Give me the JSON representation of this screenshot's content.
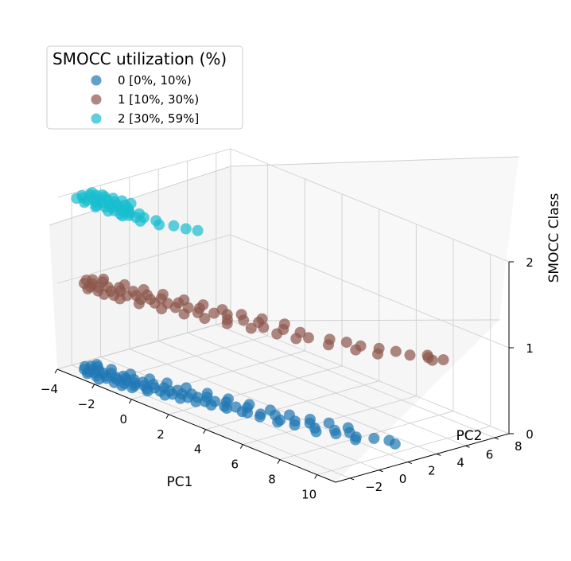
{
  "chart_data": {
    "type": "scatter",
    "projection": "3d",
    "xlabel": "PC1",
    "ylabel": "PC2",
    "zlabel": "SMOCC Class",
    "xlim": [
      -4,
      11
    ],
    "ylim": [
      -3,
      9
    ],
    "zlim": [
      0,
      2
    ],
    "x_ticks": [
      -4,
      -2,
      0,
      2,
      4,
      6,
      8,
      10
    ],
    "y_ticks": [
      -2,
      0,
      2,
      4,
      6,
      8
    ],
    "z_ticks": [
      0,
      1,
      2
    ],
    "x_tick_labels": [
      "−4",
      "−2",
      "0",
      "2",
      "4",
      "6",
      "8",
      "10"
    ],
    "y_tick_labels": [
      "−2",
      "0",
      "2",
      "4",
      "6",
      "8"
    ],
    "z_tick_labels": [
      "0",
      "1",
      "2"
    ],
    "grid": true,
    "legend": {
      "title": "SMOCC utilization (%)",
      "placement": "upper-left"
    },
    "series": [
      {
        "name": "0 [0%, 10%)",
        "class": 0,
        "color": "#1f77b4",
        "points": [
          [
            -3.6,
            -1.6
          ],
          [
            -3.4,
            -1.9
          ],
          [
            -3.5,
            -1.3
          ],
          [
            -3.2,
            -1.7
          ],
          [
            -3.1,
            -2.0
          ],
          [
            -3.0,
            -1.4
          ],
          [
            -3.3,
            -1.1
          ],
          [
            -2.9,
            -1.8
          ],
          [
            -2.7,
            -1.5
          ],
          [
            -2.6,
            -2.1
          ],
          [
            -2.5,
            -1.2
          ],
          [
            -2.4,
            -1.7
          ],
          [
            -2.2,
            -1.9
          ],
          [
            -2.1,
            -1.4
          ],
          [
            -2.0,
            -1.0
          ],
          [
            -1.9,
            -1.6
          ],
          [
            -1.7,
            -2.0
          ],
          [
            -1.6,
            -1.3
          ],
          [
            -1.5,
            -0.9
          ],
          [
            -1.4,
            -1.7
          ],
          [
            -1.2,
            -1.2
          ],
          [
            -1.1,
            -0.8
          ],
          [
            -1.0,
            -1.5
          ],
          [
            -0.8,
            -1.1
          ],
          [
            -0.7,
            -0.6
          ],
          [
            -0.5,
            -1.3
          ],
          [
            -0.4,
            -0.9
          ],
          [
            -0.2,
            -0.5
          ],
          [
            0.0,
            -1.0
          ],
          [
            0.2,
            -0.6
          ],
          [
            0.3,
            -0.2
          ],
          [
            0.5,
            -0.8
          ],
          [
            0.7,
            -0.4
          ],
          [
            0.9,
            0.0
          ],
          [
            1.1,
            -0.5
          ],
          [
            1.3,
            -0.1
          ],
          [
            1.5,
            0.3
          ],
          [
            1.8,
            -0.2
          ],
          [
            2.0,
            0.2
          ],
          [
            2.3,
            0.6
          ],
          [
            2.6,
            0.1
          ],
          [
            2.9,
            0.5
          ],
          [
            3.2,
            0.9
          ],
          [
            3.6,
            0.4
          ],
          [
            4.0,
            0.8
          ],
          [
            4.4,
            1.3
          ],
          [
            4.9,
            1.0
          ],
          [
            5.3,
            1.5
          ],
          [
            5.8,
            1.9
          ],
          [
            6.3,
            1.6
          ],
          [
            6.9,
            2.2
          ],
          [
            7.4,
            2.6
          ],
          [
            7.9,
            2.4
          ],
          [
            8.4,
            3.0
          ],
          [
            8.9,
            3.4
          ],
          [
            9.3,
            3.3
          ],
          [
            -3.0,
            -2.2
          ],
          [
            -2.3,
            -2.3
          ],
          [
            -1.8,
            -1.1
          ],
          [
            -1.3,
            -2.0
          ],
          [
            -0.9,
            -1.8
          ],
          [
            -0.3,
            -1.5
          ],
          [
            0.4,
            -1.2
          ],
          [
            1.0,
            -0.9
          ],
          [
            1.6,
            -0.6
          ],
          [
            2.2,
            -0.3
          ],
          [
            2.8,
            0.0
          ],
          [
            3.4,
            0.3
          ],
          [
            4.2,
            0.5
          ],
          [
            5.0,
            0.7
          ],
          [
            5.6,
            1.1
          ],
          [
            6.6,
            1.3
          ],
          [
            7.2,
            1.9
          ],
          [
            8.1,
            2.1
          ],
          [
            -3.5,
            -0.9
          ],
          [
            -2.8,
            -0.8
          ],
          [
            -2.0,
            -0.5
          ],
          [
            -1.2,
            -0.2
          ],
          [
            -0.5,
            0.1
          ],
          [
            0.3,
            0.4
          ],
          [
            1.2,
            0.7
          ],
          [
            2.1,
            1.0
          ],
          [
            3.0,
            1.3
          ],
          [
            3.9,
            1.6
          ],
          [
            4.7,
            1.9
          ],
          [
            5.5,
            2.3
          ],
          [
            6.2,
            2.7
          ],
          [
            7.0,
            3.0
          ]
        ]
      },
      {
        "name": "1 [10%, 30%)",
        "class": 1,
        "color": "#8c564b",
        "points": [
          [
            -3.6,
            -1.5
          ],
          [
            -3.4,
            -1.9
          ],
          [
            -3.5,
            -1.2
          ],
          [
            -3.2,
            -1.6
          ],
          [
            -3.0,
            -2.0
          ],
          [
            -3.1,
            -1.0
          ],
          [
            -2.8,
            -1.7
          ],
          [
            -2.6,
            -1.3
          ],
          [
            -2.5,
            -2.1
          ],
          [
            -2.3,
            -0.9
          ],
          [
            -2.2,
            -1.6
          ],
          [
            -2.0,
            -1.2
          ],
          [
            -1.8,
            -1.9
          ],
          [
            -1.7,
            -0.7
          ],
          [
            -1.5,
            -1.4
          ],
          [
            -1.3,
            -1.0
          ],
          [
            -1.1,
            -0.5
          ],
          [
            -0.9,
            -1.2
          ],
          [
            -0.7,
            -0.8
          ],
          [
            -0.5,
            -0.3
          ],
          [
            -0.3,
            -1.0
          ],
          [
            0.0,
            -0.5
          ],
          [
            0.2,
            0.0
          ],
          [
            0.5,
            -0.6
          ],
          [
            0.8,
            -0.1
          ],
          [
            1.1,
            0.3
          ],
          [
            1.4,
            -0.2
          ],
          [
            1.8,
            0.4
          ],
          [
            2.2,
            0.8
          ],
          [
            2.6,
            0.3
          ],
          [
            3.0,
            0.9
          ],
          [
            3.5,
            1.3
          ],
          [
            4.0,
            1.0
          ],
          [
            4.6,
            1.6
          ],
          [
            5.2,
            2.0
          ],
          [
            5.8,
            1.8
          ],
          [
            6.4,
            2.5
          ],
          [
            7.0,
            2.9
          ],
          [
            7.6,
            3.1
          ],
          [
            8.2,
            3.6
          ],
          [
            8.8,
            4.0
          ],
          [
            9.4,
            4.2
          ],
          [
            10.0,
            4.7
          ],
          [
            10.5,
            5.1
          ],
          [
            9.8,
            4.9
          ],
          [
            10.3,
            4.6
          ],
          [
            -2.9,
            -2.3
          ],
          [
            -2.1,
            -2.2
          ],
          [
            -1.4,
            -2.0
          ],
          [
            -0.6,
            -1.7
          ],
          [
            0.3,
            -1.3
          ],
          [
            1.2,
            -0.9
          ],
          [
            2.0,
            -0.5
          ],
          [
            2.9,
            -0.1
          ],
          [
            3.8,
            0.4
          ],
          [
            4.8,
            0.9
          ],
          [
            5.6,
            1.2
          ],
          [
            6.8,
            1.9
          ],
          [
            7.8,
            2.5
          ],
          [
            8.6,
            3.0
          ],
          [
            -3.3,
            -0.7
          ],
          [
            -2.4,
            -0.4
          ],
          [
            -1.6,
            -0.1
          ],
          [
            -0.8,
            0.2
          ],
          [
            0.1,
            0.5
          ],
          [
            0.9,
            0.8
          ],
          [
            1.7,
            1.1
          ],
          [
            2.5,
            1.4
          ],
          [
            3.3,
            1.8
          ],
          [
            4.2,
            2.2
          ]
        ]
      },
      {
        "name": "2 [30%, 59%]",
        "class": 2,
        "color": "#17becf",
        "points": [
          [
            -3.6,
            -1.8
          ],
          [
            -3.5,
            -1.4
          ],
          [
            -3.4,
            -2.0
          ],
          [
            -3.3,
            -1.2
          ],
          [
            -3.2,
            -1.6
          ],
          [
            -3.1,
            -2.1
          ],
          [
            -3.0,
            -1.0
          ],
          [
            -2.9,
            -1.5
          ],
          [
            -2.8,
            -1.9
          ],
          [
            -2.7,
            -1.2
          ],
          [
            -2.6,
            -1.7
          ],
          [
            -2.5,
            -2.2
          ],
          [
            -2.4,
            -1.1
          ],
          [
            -2.3,
            -1.6
          ],
          [
            -2.2,
            -2.0
          ],
          [
            -2.1,
            -1.3
          ],
          [
            -2.0,
            -1.8
          ],
          [
            -1.9,
            -1.0
          ],
          [
            -1.8,
            -1.5
          ],
          [
            -1.7,
            -2.0
          ],
          [
            -1.6,
            -1.2
          ],
          [
            -1.5,
            -1.7
          ],
          [
            -1.4,
            -1.4
          ],
          [
            -1.3,
            -2.1
          ],
          [
            -1.2,
            -1.6
          ],
          [
            -1.0,
            -1.9
          ],
          [
            -0.9,
            -1.3
          ],
          [
            -0.7,
            -1.8
          ],
          [
            -0.5,
            -1.5
          ],
          [
            -0.3,
            -2.0
          ],
          [
            -3.5,
            -2.3
          ],
          [
            -3.0,
            -2.4
          ],
          [
            -2.4,
            -2.4
          ],
          [
            -1.8,
            -2.3
          ],
          [
            -1.1,
            -2.2
          ],
          [
            -3.6,
            -1.1
          ],
          [
            -3.2,
            -0.9
          ],
          [
            -2.7,
            -0.8
          ],
          [
            -2.3,
            -0.7
          ],
          [
            -1.9,
            -0.6
          ],
          [
            0.0,
            -1.3
          ],
          [
            0.4,
            -1.6
          ],
          [
            0.8,
            -1.1
          ],
          [
            1.3,
            -0.9
          ],
          [
            1.7,
            -0.6
          ]
        ]
      }
    ]
  }
}
